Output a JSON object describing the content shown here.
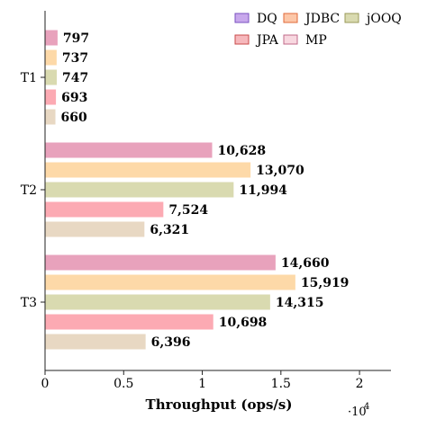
{
  "chart_data": {
    "type": "bar",
    "orientation": "horizontal",
    "title": "",
    "xlabel": "Throughput (ops/s)",
    "ylabel": "",
    "xlim": [
      0,
      22000
    ],
    "x_ticks": [
      0,
      0.5,
      1,
      1.5,
      2
    ],
    "x_tick_labels": [
      "0",
      "0.5",
      "1",
      "1.5",
      "2"
    ],
    "x_scale_multiplier": "·10^4",
    "grid": false,
    "legend_position": "top-right",
    "categories": [
      "T1",
      "T2",
      "T3"
    ],
    "series": [
      {
        "name": "DQ",
        "values": [
          797,
          10628,
          14660
        ],
        "labels": [
          "797",
          "10,628",
          "14,660"
        ],
        "color": "#e8a2bc",
        "legend_color": "#c8a8ec",
        "legend_border": "#7a52c0"
      },
      {
        "name": "JDBC",
        "values": [
          737,
          13070,
          15919
        ],
        "labels": [
          "737",
          "13,070",
          "15,919"
        ],
        "color": "#fdd9a8",
        "legend_color": "#fcc7a8",
        "legend_border": "#e06a3a"
      },
      {
        "name": "jOOQ",
        "values": [
          747,
          11994,
          14315
        ],
        "labels": [
          "747",
          "11,994",
          "14,315"
        ],
        "color": "#d9dab0",
        "legend_color": "#d9dab0",
        "legend_border": "#9a9a58"
      },
      {
        "name": "JPA",
        "values": [
          693,
          7524,
          10698
        ],
        "labels": [
          "693",
          "7,524",
          "10,698"
        ],
        "color": "#fcaab3",
        "legend_color": "#f6b8bc",
        "legend_border": "#c84a4a"
      },
      {
        "name": "MP",
        "values": [
          660,
          6321,
          6396
        ],
        "labels": [
          "660",
          "6,321",
          "6,396"
        ],
        "color": "#e8d8c3",
        "legend_color": "#f8d8e0",
        "legend_border": "#c06a8a"
      }
    ]
  }
}
